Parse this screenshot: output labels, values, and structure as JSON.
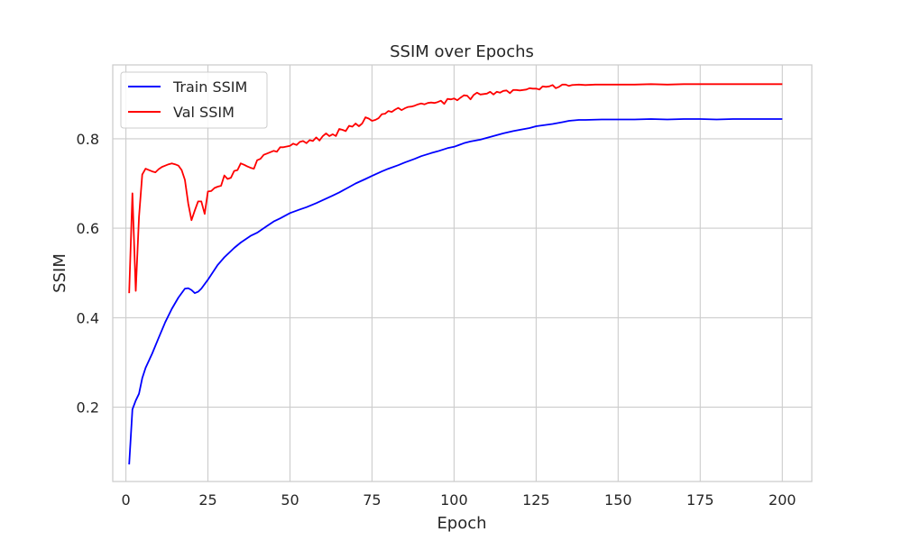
{
  "chart_data": {
    "type": "line",
    "title": "SSIM over Epochs",
    "xlabel": "Epoch",
    "ylabel": "SSIM",
    "xlim": [
      -4,
      209
    ],
    "ylim": [
      0.034,
      0.965
    ],
    "xticks": [
      0,
      25,
      50,
      75,
      100,
      125,
      150,
      175,
      200
    ],
    "yticks": [
      0.2,
      0.4,
      0.6,
      0.8
    ],
    "ytick_labels": [
      "0.2",
      "0.4",
      "0.6",
      "0.8"
    ],
    "grid": true,
    "legend_position": "top-left",
    "series": [
      {
        "name": "Train SSIM",
        "color": "#0000ff",
        "points": [
          [
            1,
            0.072
          ],
          [
            2,
            0.195
          ],
          [
            3,
            0.215
          ],
          [
            4,
            0.23
          ],
          [
            5,
            0.265
          ],
          [
            6,
            0.288
          ],
          [
            8,
            0.32
          ],
          [
            10,
            0.355
          ],
          [
            12,
            0.39
          ],
          [
            14,
            0.42
          ],
          [
            16,
            0.445
          ],
          [
            18,
            0.465
          ],
          [
            19,
            0.466
          ],
          [
            20,
            0.462
          ],
          [
            21,
            0.455
          ],
          [
            22,
            0.458
          ],
          [
            23,
            0.465
          ],
          [
            25,
            0.485
          ],
          [
            28,
            0.518
          ],
          [
            30,
            0.535
          ],
          [
            33,
            0.556
          ],
          [
            35,
            0.568
          ],
          [
            38,
            0.583
          ],
          [
            40,
            0.59
          ],
          [
            43,
            0.605
          ],
          [
            45,
            0.615
          ],
          [
            47,
            0.622
          ],
          [
            50,
            0.634
          ],
          [
            53,
            0.642
          ],
          [
            55,
            0.647
          ],
          [
            58,
            0.656
          ],
          [
            60,
            0.663
          ],
          [
            63,
            0.673
          ],
          [
            65,
            0.68
          ],
          [
            68,
            0.692
          ],
          [
            70,
            0.7
          ],
          [
            73,
            0.71
          ],
          [
            75,
            0.717
          ],
          [
            78,
            0.727
          ],
          [
            80,
            0.733
          ],
          [
            83,
            0.741
          ],
          [
            85,
            0.747
          ],
          [
            88,
            0.755
          ],
          [
            90,
            0.761
          ],
          [
            93,
            0.768
          ],
          [
            95,
            0.772
          ],
          [
            98,
            0.779
          ],
          [
            100,
            0.782
          ],
          [
            103,
            0.79
          ],
          [
            105,
            0.794
          ],
          [
            108,
            0.798
          ],
          [
            110,
            0.802
          ],
          [
            113,
            0.808
          ],
          [
            115,
            0.812
          ],
          [
            118,
            0.817
          ],
          [
            120,
            0.82
          ],
          [
            123,
            0.824
          ],
          [
            125,
            0.828
          ],
          [
            128,
            0.831
          ],
          [
            130,
            0.833
          ],
          [
            133,
            0.837
          ],
          [
            135,
            0.84
          ],
          [
            138,
            0.842
          ],
          [
            140,
            0.842
          ],
          [
            145,
            0.843
          ],
          [
            150,
            0.843
          ],
          [
            155,
            0.843
          ],
          [
            160,
            0.844
          ],
          [
            165,
            0.843
          ],
          [
            170,
            0.844
          ],
          [
            175,
            0.844
          ],
          [
            180,
            0.843
          ],
          [
            185,
            0.844
          ],
          [
            190,
            0.844
          ],
          [
            195,
            0.844
          ],
          [
            200,
            0.844
          ]
        ]
      },
      {
        "name": "Val SSIM",
        "color": "#ff0000",
        "points": [
          [
            1,
            0.455
          ],
          [
            2,
            0.678
          ],
          [
            3,
            0.46
          ],
          [
            4,
            0.625
          ],
          [
            5,
            0.72
          ],
          [
            6,
            0.733
          ],
          [
            7,
            0.73
          ],
          [
            8,
            0.727
          ],
          [
            9,
            0.725
          ],
          [
            10,
            0.732
          ],
          [
            11,
            0.737
          ],
          [
            12,
            0.74
          ],
          [
            13,
            0.743
          ],
          [
            14,
            0.745
          ],
          [
            15,
            0.743
          ],
          [
            16,
            0.74
          ],
          [
            17,
            0.73
          ],
          [
            18,
            0.708
          ],
          [
            19,
            0.655
          ],
          [
            20,
            0.618
          ],
          [
            21,
            0.64
          ],
          [
            22,
            0.66
          ],
          [
            23,
            0.66
          ],
          [
            24,
            0.632
          ],
          [
            25,
            0.682
          ],
          [
            26,
            0.683
          ],
          [
            27,
            0.69
          ],
          [
            28,
            0.693
          ],
          [
            29,
            0.695
          ],
          [
            30,
            0.718
          ],
          [
            31,
            0.71
          ],
          [
            32,
            0.713
          ],
          [
            33,
            0.728
          ],
          [
            34,
            0.73
          ],
          [
            35,
            0.745
          ],
          [
            36,
            0.742
          ],
          [
            37,
            0.738
          ],
          [
            38,
            0.735
          ],
          [
            39,
            0.733
          ],
          [
            40,
            0.752
          ],
          [
            41,
            0.755
          ],
          [
            42,
            0.764
          ],
          [
            43,
            0.767
          ],
          [
            45,
            0.773
          ],
          [
            46,
            0.771
          ],
          [
            47,
            0.781
          ],
          [
            48,
            0.781
          ],
          [
            50,
            0.784
          ],
          [
            51,
            0.789
          ],
          [
            52,
            0.786
          ],
          [
            53,
            0.793
          ],
          [
            54,
            0.795
          ],
          [
            55,
            0.79
          ],
          [
            56,
            0.797
          ],
          [
            57,
            0.795
          ],
          [
            58,
            0.803
          ],
          [
            59,
            0.796
          ],
          [
            60,
            0.806
          ],
          [
            61,
            0.812
          ],
          [
            62,
            0.806
          ],
          [
            63,
            0.81
          ],
          [
            64,
            0.806
          ],
          [
            65,
            0.822
          ],
          [
            66,
            0.82
          ],
          [
            67,
            0.817
          ],
          [
            68,
            0.829
          ],
          [
            69,
            0.827
          ],
          [
            70,
            0.834
          ],
          [
            71,
            0.828
          ],
          [
            72,
            0.834
          ],
          [
            73,
            0.848
          ],
          [
            74,
            0.845
          ],
          [
            75,
            0.84
          ],
          [
            76,
            0.842
          ],
          [
            77,
            0.846
          ],
          [
            78,
            0.855
          ],
          [
            79,
            0.856
          ],
          [
            80,
            0.862
          ],
          [
            81,
            0.86
          ],
          [
            82,
            0.865
          ],
          [
            83,
            0.869
          ],
          [
            84,
            0.864
          ],
          [
            85,
            0.868
          ],
          [
            86,
            0.871
          ],
          [
            87,
            0.872
          ],
          [
            88,
            0.874
          ],
          [
            89,
            0.877
          ],
          [
            90,
            0.879
          ],
          [
            91,
            0.877
          ],
          [
            92,
            0.88
          ],
          [
            93,
            0.881
          ],
          [
            94,
            0.88
          ],
          [
            95,
            0.882
          ],
          [
            96,
            0.885
          ],
          [
            97,
            0.878
          ],
          [
            98,
            0.889
          ],
          [
            99,
            0.888
          ],
          [
            100,
            0.89
          ],
          [
            101,
            0.886
          ],
          [
            102,
            0.892
          ],
          [
            103,
            0.897
          ],
          [
            104,
            0.896
          ],
          [
            105,
            0.888
          ],
          [
            106,
            0.898
          ],
          [
            107,
            0.903
          ],
          [
            108,
            0.899
          ],
          [
            109,
            0.9
          ],
          [
            110,
            0.901
          ],
          [
            111,
            0.905
          ],
          [
            112,
            0.899
          ],
          [
            113,
            0.905
          ],
          [
            114,
            0.903
          ],
          [
            115,
            0.907
          ],
          [
            116,
            0.908
          ],
          [
            117,
            0.902
          ],
          [
            118,
            0.909
          ],
          [
            119,
            0.909
          ],
          [
            120,
            0.908
          ],
          [
            122,
            0.91
          ],
          [
            123,
            0.913
          ],
          [
            124,
            0.912
          ],
          [
            125,
            0.912
          ],
          [
            126,
            0.91
          ],
          [
            127,
            0.917
          ],
          [
            128,
            0.916
          ],
          [
            129,
            0.917
          ],
          [
            130,
            0.92
          ],
          [
            131,
            0.913
          ],
          [
            132,
            0.916
          ],
          [
            133,
            0.921
          ],
          [
            134,
            0.921
          ],
          [
            135,
            0.918
          ],
          [
            136,
            0.92
          ],
          [
            138,
            0.921
          ],
          [
            140,
            0.92
          ],
          [
            143,
            0.921
          ],
          [
            145,
            0.921
          ],
          [
            150,
            0.921
          ],
          [
            155,
            0.921
          ],
          [
            160,
            0.922
          ],
          [
            165,
            0.921
          ],
          [
            170,
            0.922
          ],
          [
            175,
            0.922
          ],
          [
            180,
            0.922
          ],
          [
            185,
            0.922
          ],
          [
            190,
            0.922
          ],
          [
            195,
            0.922
          ],
          [
            200,
            0.922
          ]
        ]
      }
    ]
  }
}
